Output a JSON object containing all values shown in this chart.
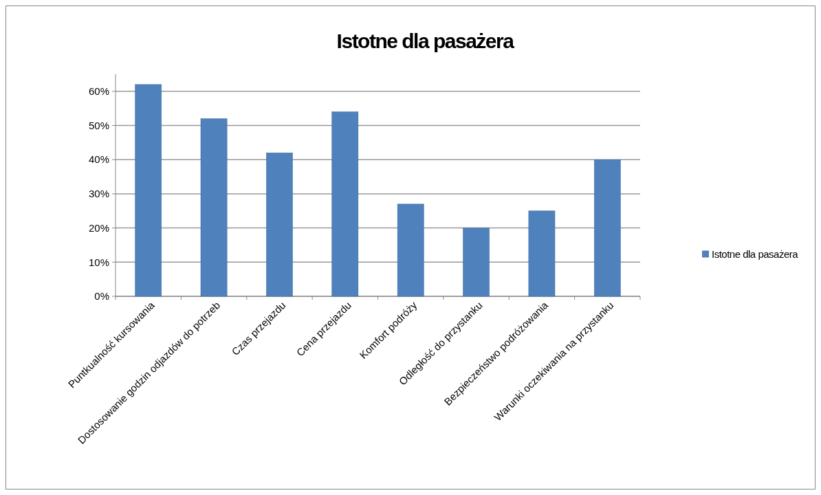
{
  "chart_data": {
    "type": "bar",
    "title": "Istotne dla pasażera",
    "categories": [
      "Puntkualność kursowania",
      "Dostosowanie godzin odjazdów do potrzeb",
      "Czas przejazdu",
      "Cena przejazdu",
      "Komfort podróży",
      "Odległość do przystanku",
      "Bezpieczeństwo podróżowania",
      "Warunki oczekiwania na przystanku"
    ],
    "series": [
      {
        "name": "Istotne dla pasażera",
        "color": "#4f81bd",
        "values": [
          62,
          52,
          42,
          54,
          27,
          20,
          25,
          40
        ]
      }
    ],
    "ylim": [
      0,
      65
    ],
    "yticks": [
      {
        "value": 0,
        "label": "0%"
      },
      {
        "value": 10,
        "label": "10%"
      },
      {
        "value": 20,
        "label": "20%"
      },
      {
        "value": 30,
        "label": "30%"
      },
      {
        "value": 40,
        "label": "40%"
      },
      {
        "value": 50,
        "label": "50%"
      },
      {
        "value": 60,
        "label": "60%"
      }
    ],
    "grid": "y",
    "legend": "right"
  }
}
